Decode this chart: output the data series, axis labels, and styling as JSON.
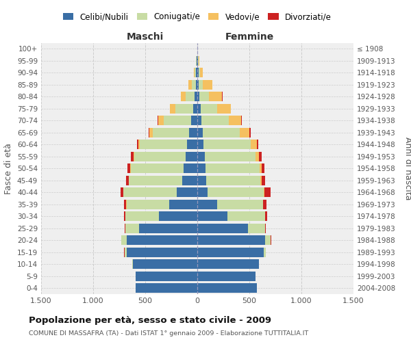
{
  "age_groups_bottom_to_top": [
    "0-4",
    "5-9",
    "10-14",
    "15-19",
    "20-24",
    "25-29",
    "30-34",
    "35-39",
    "40-44",
    "45-49",
    "50-54",
    "55-59",
    "60-64",
    "65-69",
    "70-74",
    "75-79",
    "80-84",
    "85-89",
    "90-94",
    "95-99",
    "100+"
  ],
  "birth_years_bottom_to_top": [
    "2004-2008",
    "1999-2003",
    "1994-1998",
    "1989-1993",
    "1984-1988",
    "1979-1983",
    "1974-1978",
    "1969-1973",
    "1964-1968",
    "1959-1963",
    "1954-1958",
    "1949-1953",
    "1944-1948",
    "1939-1943",
    "1934-1938",
    "1929-1933",
    "1924-1928",
    "1919-1923",
    "1914-1918",
    "1909-1913",
    "≤ 1908"
  ],
  "male_celibinubili": [
    590,
    590,
    620,
    680,
    680,
    560,
    370,
    270,
    200,
    145,
    130,
    115,
    100,
    80,
    60,
    40,
    25,
    15,
    10,
    5,
    2
  ],
  "male_coniugati": [
    1,
    2,
    5,
    20,
    50,
    130,
    320,
    410,
    510,
    510,
    510,
    490,
    450,
    350,
    260,
    170,
    90,
    40,
    15,
    5,
    0
  ],
  "male_vedovi": [
    0,
    0,
    0,
    0,
    0,
    0,
    1,
    2,
    3,
    5,
    8,
    10,
    15,
    30,
    55,
    50,
    40,
    30,
    10,
    5,
    0
  ],
  "male_divorziati": [
    0,
    0,
    0,
    1,
    2,
    5,
    15,
    25,
    25,
    25,
    25,
    20,
    15,
    10,
    5,
    5,
    2,
    0,
    0,
    0,
    0
  ],
  "female_celibinubili": [
    570,
    560,
    590,
    640,
    650,
    490,
    290,
    190,
    100,
    85,
    80,
    70,
    60,
    55,
    40,
    30,
    20,
    15,
    10,
    5,
    2
  ],
  "female_coniugati": [
    1,
    1,
    3,
    15,
    55,
    160,
    360,
    440,
    540,
    520,
    520,
    490,
    450,
    350,
    260,
    160,
    90,
    40,
    15,
    5,
    0
  ],
  "female_vedovi": [
    0,
    0,
    0,
    0,
    0,
    1,
    2,
    3,
    8,
    15,
    20,
    35,
    60,
    95,
    120,
    130,
    130,
    90,
    30,
    10,
    0
  ],
  "female_divorziati": [
    0,
    0,
    0,
    1,
    3,
    5,
    20,
    30,
    55,
    30,
    25,
    25,
    18,
    12,
    8,
    5,
    3,
    0,
    0,
    0,
    0
  ],
  "colors": {
    "celibinubili": "#3a6ea5",
    "coniugati": "#c8dca4",
    "vedovi": "#f5c060",
    "divorziati": "#cc2222"
  },
  "title": "Popolazione per età, sesso e stato civile - 2009",
  "subtitle": "COMUNE DI MASSAFRA (TA) - Dati ISTAT 1° gennaio 2009 - Elaborazione TUTTITALIA.IT",
  "xlabel_left": "Maschi",
  "xlabel_right": "Femmine",
  "ylabel_left": "Fasce di età",
  "ylabel_right": "Anni di nascita",
  "xlim": 1500,
  "bg_color": "#efefef",
  "grid_color": "#cccccc"
}
